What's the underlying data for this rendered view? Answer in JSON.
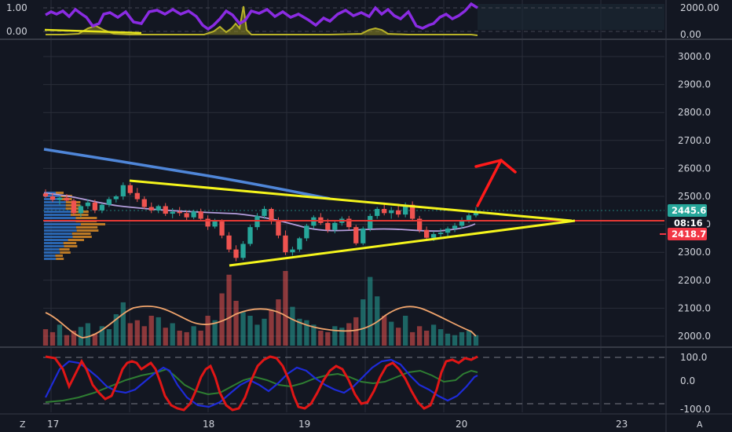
{
  "chart_data": {
    "type": "candlestick",
    "main_panel": {
      "y_ticks": [
        "3000.0",
        "2900.0",
        "2800.0",
        "2700.0",
        "2600.0",
        "2500.0",
        "2400.0",
        "2300.0",
        "2200.0",
        "2100.0",
        "2000.0"
      ],
      "ylim": [
        1975,
        3040
      ],
      "price_badges": [
        {
          "value": "2445.6",
          "color": "#26a69a"
        },
        {
          "value": "08:16",
          "color": "#131722"
        },
        {
          "value": "2418.7",
          "color": "#f23645"
        }
      ],
      "ohlc": [
        [
          2510,
          2525,
          2495,
          2500
        ],
        [
          2500,
          2512,
          2480,
          2488
        ],
        [
          2488,
          2500,
          2470,
          2495
        ],
        [
          2495,
          2508,
          2482,
          2485
        ],
        [
          2485,
          2492,
          2430,
          2440
        ],
        [
          2440,
          2470,
          2425,
          2465
        ],
        [
          2465,
          2490,
          2455,
          2478
        ],
        [
          2478,
          2488,
          2440,
          2450
        ],
        [
          2450,
          2475,
          2440,
          2470
        ],
        [
          2470,
          2498,
          2462,
          2490
        ],
        [
          2490,
          2505,
          2478,
          2500
        ],
        [
          2500,
          2550,
          2488,
          2540
        ],
        [
          2540,
          2548,
          2505,
          2512
        ],
        [
          2512,
          2530,
          2480,
          2490
        ],
        [
          2490,
          2500,
          2455,
          2462
        ],
        [
          2462,
          2478,
          2440,
          2450
        ],
        [
          2450,
          2470,
          2440,
          2465
        ],
        [
          2465,
          2476,
          2430,
          2438
        ],
        [
          2438,
          2458,
          2422,
          2445
        ],
        [
          2445,
          2462,
          2430,
          2440
        ],
        [
          2440,
          2450,
          2415,
          2425
        ],
        [
          2425,
          2452,
          2418,
          2446
        ],
        [
          2446,
          2456,
          2416,
          2420
        ],
        [
          2420,
          2432,
          2380,
          2392
        ],
        [
          2392,
          2420,
          2385,
          2410
        ],
        [
          2410,
          2418,
          2350,
          2360
        ],
        [
          2360,
          2372,
          2300,
          2310
        ],
        [
          2310,
          2325,
          2268,
          2280
        ],
        [
          2280,
          2340,
          2272,
          2330
        ],
        [
          2330,
          2398,
          2322,
          2390
        ],
        [
          2390,
          2440,
          2380,
          2430
        ],
        [
          2430,
          2465,
          2420,
          2455
        ],
        [
          2455,
          2460,
          2400,
          2410
        ],
        [
          2410,
          2425,
          2350,
          2360
        ],
        [
          2360,
          2378,
          2290,
          2300
        ],
        [
          2300,
          2320,
          2288,
          2310
        ],
        [
          2310,
          2355,
          2302,
          2350
        ],
        [
          2350,
          2402,
          2340,
          2395
        ],
        [
          2395,
          2432,
          2385,
          2425
        ],
        [
          2425,
          2440,
          2398,
          2405
        ],
        [
          2405,
          2420,
          2370,
          2380
        ],
        [
          2380,
          2412,
          2368,
          2405
        ],
        [
          2405,
          2428,
          2395,
          2420
        ],
        [
          2420,
          2430,
          2380,
          2390
        ],
        [
          2390,
          2398,
          2325,
          2332
        ],
        [
          2332,
          2392,
          2325,
          2385
        ],
        [
          2385,
          2438,
          2375,
          2430
        ],
        [
          2430,
          2462,
          2420,
          2455
        ],
        [
          2455,
          2478,
          2432,
          2440
        ],
        [
          2440,
          2462,
          2420,
          2450
        ],
        [
          2450,
          2468,
          2425,
          2435
        ],
        [
          2435,
          2478,
          2425,
          2470
        ],
        [
          2470,
          2482,
          2410,
          2420
        ],
        [
          2420,
          2430,
          2370,
          2380
        ],
        [
          2380,
          2392,
          2345,
          2352
        ],
        [
          2352,
          2375,
          2340,
          2365
        ],
        [
          2365,
          2385,
          2348,
          2370
        ],
        [
          2370,
          2392,
          2355,
          2385
        ],
        [
          2385,
          2405,
          2372,
          2395
        ],
        [
          2395,
          2425,
          2385,
          2415
        ],
        [
          2415,
          2440,
          2405,
          2432
        ],
        [
          2432,
          2462,
          2425,
          2445
        ]
      ],
      "pivot_line": 2418.7,
      "last_price": 2445.6
    },
    "volume": [
      22,
      18,
      28,
      14,
      20,
      25,
      30,
      16,
      26,
      22,
      42,
      58,
      30,
      34,
      26,
      40,
      38,
      24,
      30,
      20,
      18,
      26,
      20,
      40,
      34,
      70,
      95,
      60,
      45,
      40,
      28,
      36,
      48,
      62,
      100,
      52,
      36,
      34,
      28,
      20,
      18,
      26,
      24,
      30,
      38,
      62,
      92,
      66,
      40,
      32,
      24,
      40,
      18,
      26,
      20,
      28,
      22,
      16,
      14,
      18,
      20,
      14
    ],
    "indicators": {
      "top_ticks_left": [
        "1.00",
        "0.00"
      ],
      "top_ticks_right": [
        "2000.00",
        "0.00"
      ],
      "bottom_ticks": [
        "100.0",
        "0.0",
        "-100.0"
      ],
      "legend_left_letter": "Z",
      "corner_icon": "A"
    },
    "x_ticks": [
      "17",
      "18",
      "19",
      "20",
      "23"
    ]
  }
}
